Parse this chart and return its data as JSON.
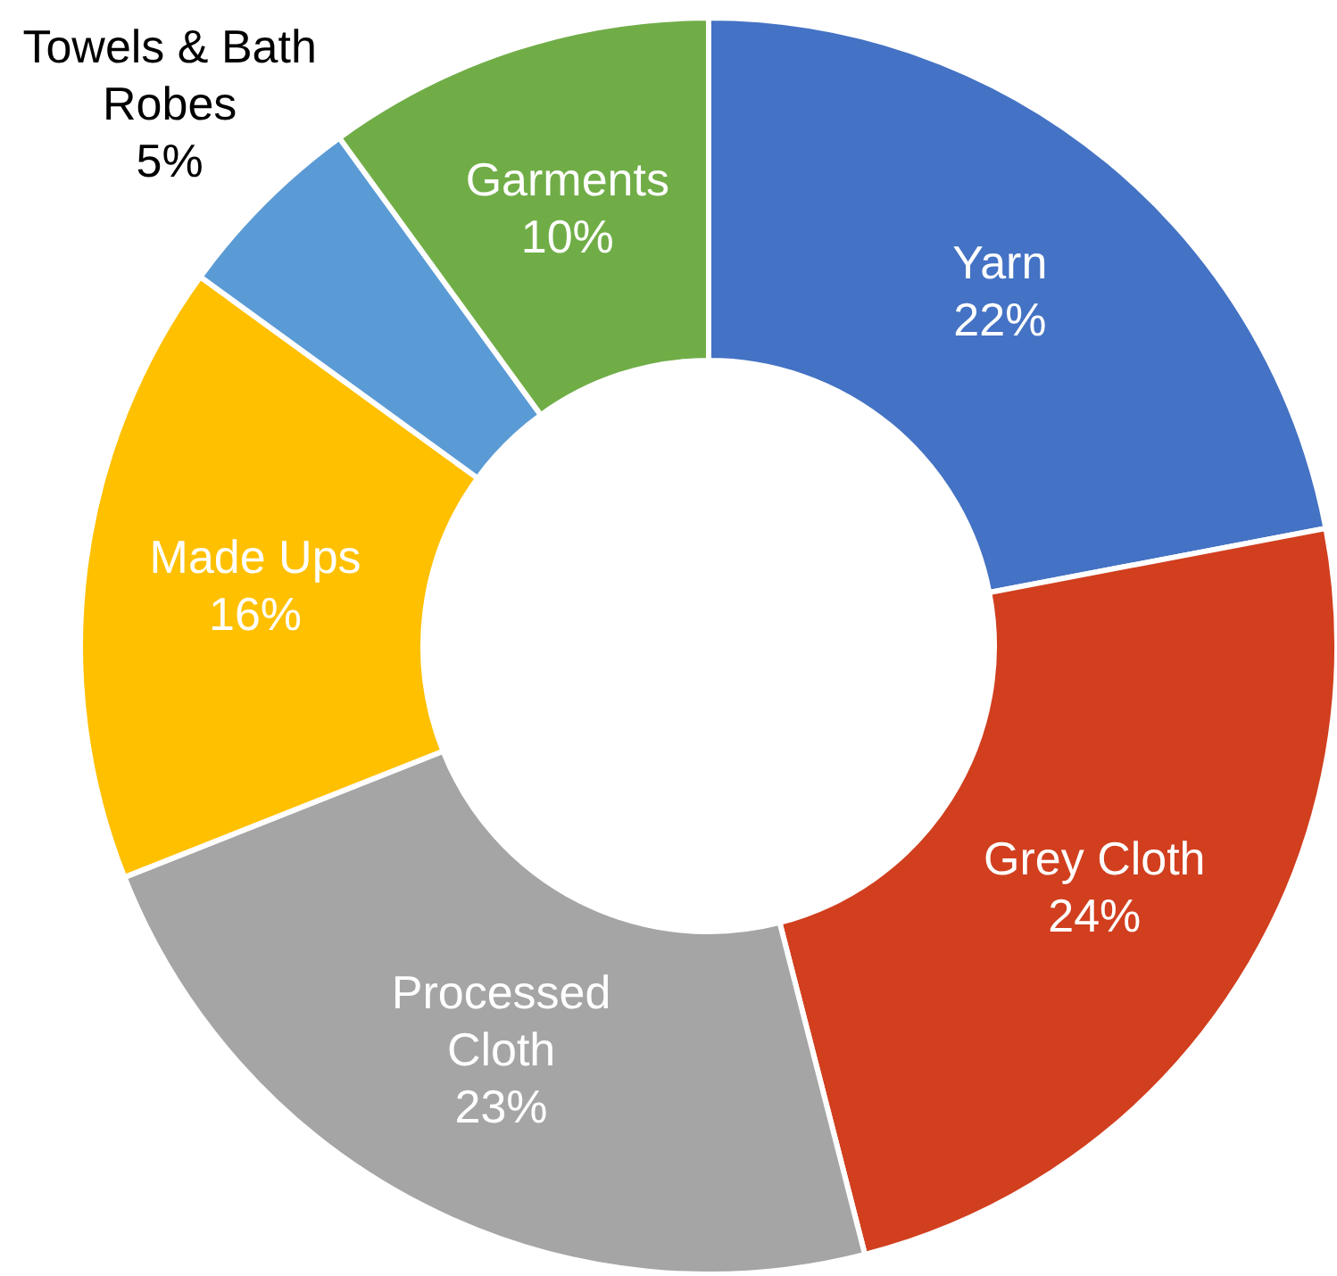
{
  "chart_data": {
    "type": "donut",
    "categories": [
      "Yarn",
      "Grey Cloth",
      "Processed Cloth",
      "Made Ups",
      "Towels & Bath Robes",
      "Garments"
    ],
    "values": [
      22,
      24,
      23,
      16,
      5,
      10
    ],
    "value_labels": [
      "22%",
      "24%",
      "23%",
      "16%",
      "5%",
      "10%"
    ],
    "colors": [
      "#4472c4",
      "#d13f1f",
      "#a5a5a5",
      "#ffc000",
      "#5b9bd5",
      "#70ad47"
    ],
    "legend": false
  }
}
